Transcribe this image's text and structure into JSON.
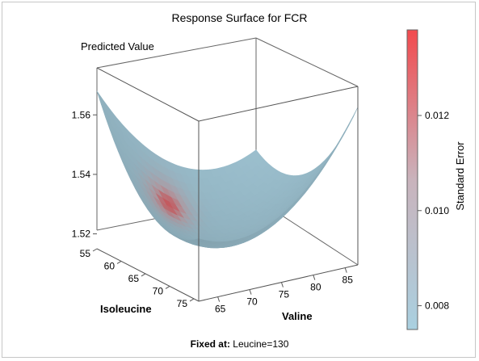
{
  "chart_data": {
    "type": "surface3d",
    "title": "Response Surface for FCR",
    "zlabel": "Predicted Value",
    "xlabel": "Isoleucine",
    "ylabel": "Valine",
    "footnote": {
      "label": "Fixed at:",
      "value": "Leucine=130"
    },
    "x_ticks": [
      "55",
      "60",
      "65",
      "70",
      "75"
    ],
    "y_ticks": [
      "65",
      "70",
      "75",
      "80",
      "85"
    ],
    "z_ticks": [
      "1.52",
      "1.54",
      "1.56"
    ],
    "xlim": [
      55,
      76
    ],
    "ylim": [
      62,
      87
    ],
    "zlim": [
      1.515,
      1.575
    ],
    "surface": {
      "description_values": "Predicted FCR bowl-shaped surface",
      "corners": {
        "x55_y62": 1.568,
        "x76_y87": 1.568,
        "x55_y87": 1.55,
        "x76_y62": 1.55
      },
      "minimum": 1.522
    },
    "colorbar": {
      "title": "Standard Error",
      "ticks": [
        "0.008",
        "0.010",
        "0.012"
      ],
      "tick_values": [
        0.008,
        0.01,
        0.012
      ],
      "range": [
        0.0075,
        0.0138
      ],
      "low_color": "#a9d0e0",
      "mid_color": "#c3b1bb",
      "high_color": "#f24a4e"
    }
  }
}
